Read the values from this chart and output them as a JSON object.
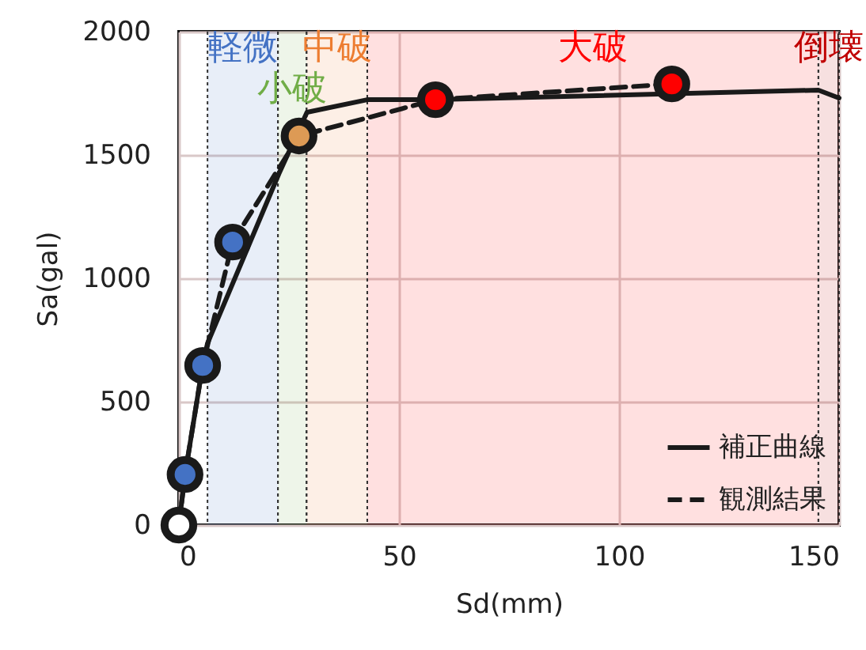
{
  "chart_data": {
    "type": "line",
    "xlabel": "Sd(mm)",
    "ylabel": "Sa(gal)",
    "xlim": [
      0,
      150
    ],
    "xticks": [
      0,
      50,
      100,
      150
    ],
    "ylim": [
      0,
      2000
    ],
    "yticks": [
      0,
      500,
      1000,
      1500,
      2000
    ],
    "grid": true,
    "legend": "bottom right",
    "bands": [
      {
        "axis": "x",
        "from": 6.5,
        "to": 22.5,
        "label": "軽微",
        "color": "#4472c4"
      },
      {
        "axis": "x",
        "from": 22.5,
        "to": 29,
        "label": "小破",
        "color": "#70ad47"
      },
      {
        "axis": "x",
        "from": 29,
        "to": 42.8,
        "label": "中破",
        "color": "#ed7d31"
      },
      {
        "axis": "x",
        "from": 42.8,
        "to": 145.3,
        "label": "大破",
        "color": "#ff0000"
      },
      {
        "axis": "x",
        "from": 145.3,
        "to": 150,
        "label": "倒壊",
        "color": "#c00000"
      }
    ],
    "series": [
      {
        "name": "補正曲線",
        "color": "#1a1a1a",
        "line_style": "solid",
        "marker": "none",
        "x": [
          0,
          1.4,
          5.4,
          6.5,
          22.7,
          29.1,
          42.8,
          58.3,
          145.3,
          150
        ],
        "values": [
          0,
          205,
          647,
          737,
          1423,
          1673,
          1724,
          1724,
          1763,
          1731
        ]
      },
      {
        "name": "観測結果",
        "color": "#1a1a1a",
        "line_style": "dashed",
        "marker": "none",
        "x": [
          0,
          1.4,
          5.4,
          12.2,
          27.3,
          58.3,
          112
        ],
        "values": [
          0,
          205,
          647,
          1147,
          1577,
          1724,
          1788
        ]
      },
      {
        "type": "scatter",
        "color": "#1a1a1a",
        "marker": "circle",
        "colors": [
          "#ffffff",
          "#4472c4",
          "#4472c4",
          "#4472c4",
          "#dd9a55",
          "#ff0000",
          "#ff0000"
        ],
        "x": [
          0,
          1.4,
          5.4,
          12.2,
          27.3,
          58.3,
          112
        ],
        "values": [
          0,
          205,
          647,
          1147,
          1577,
          1724,
          1788
        ]
      }
    ]
  }
}
